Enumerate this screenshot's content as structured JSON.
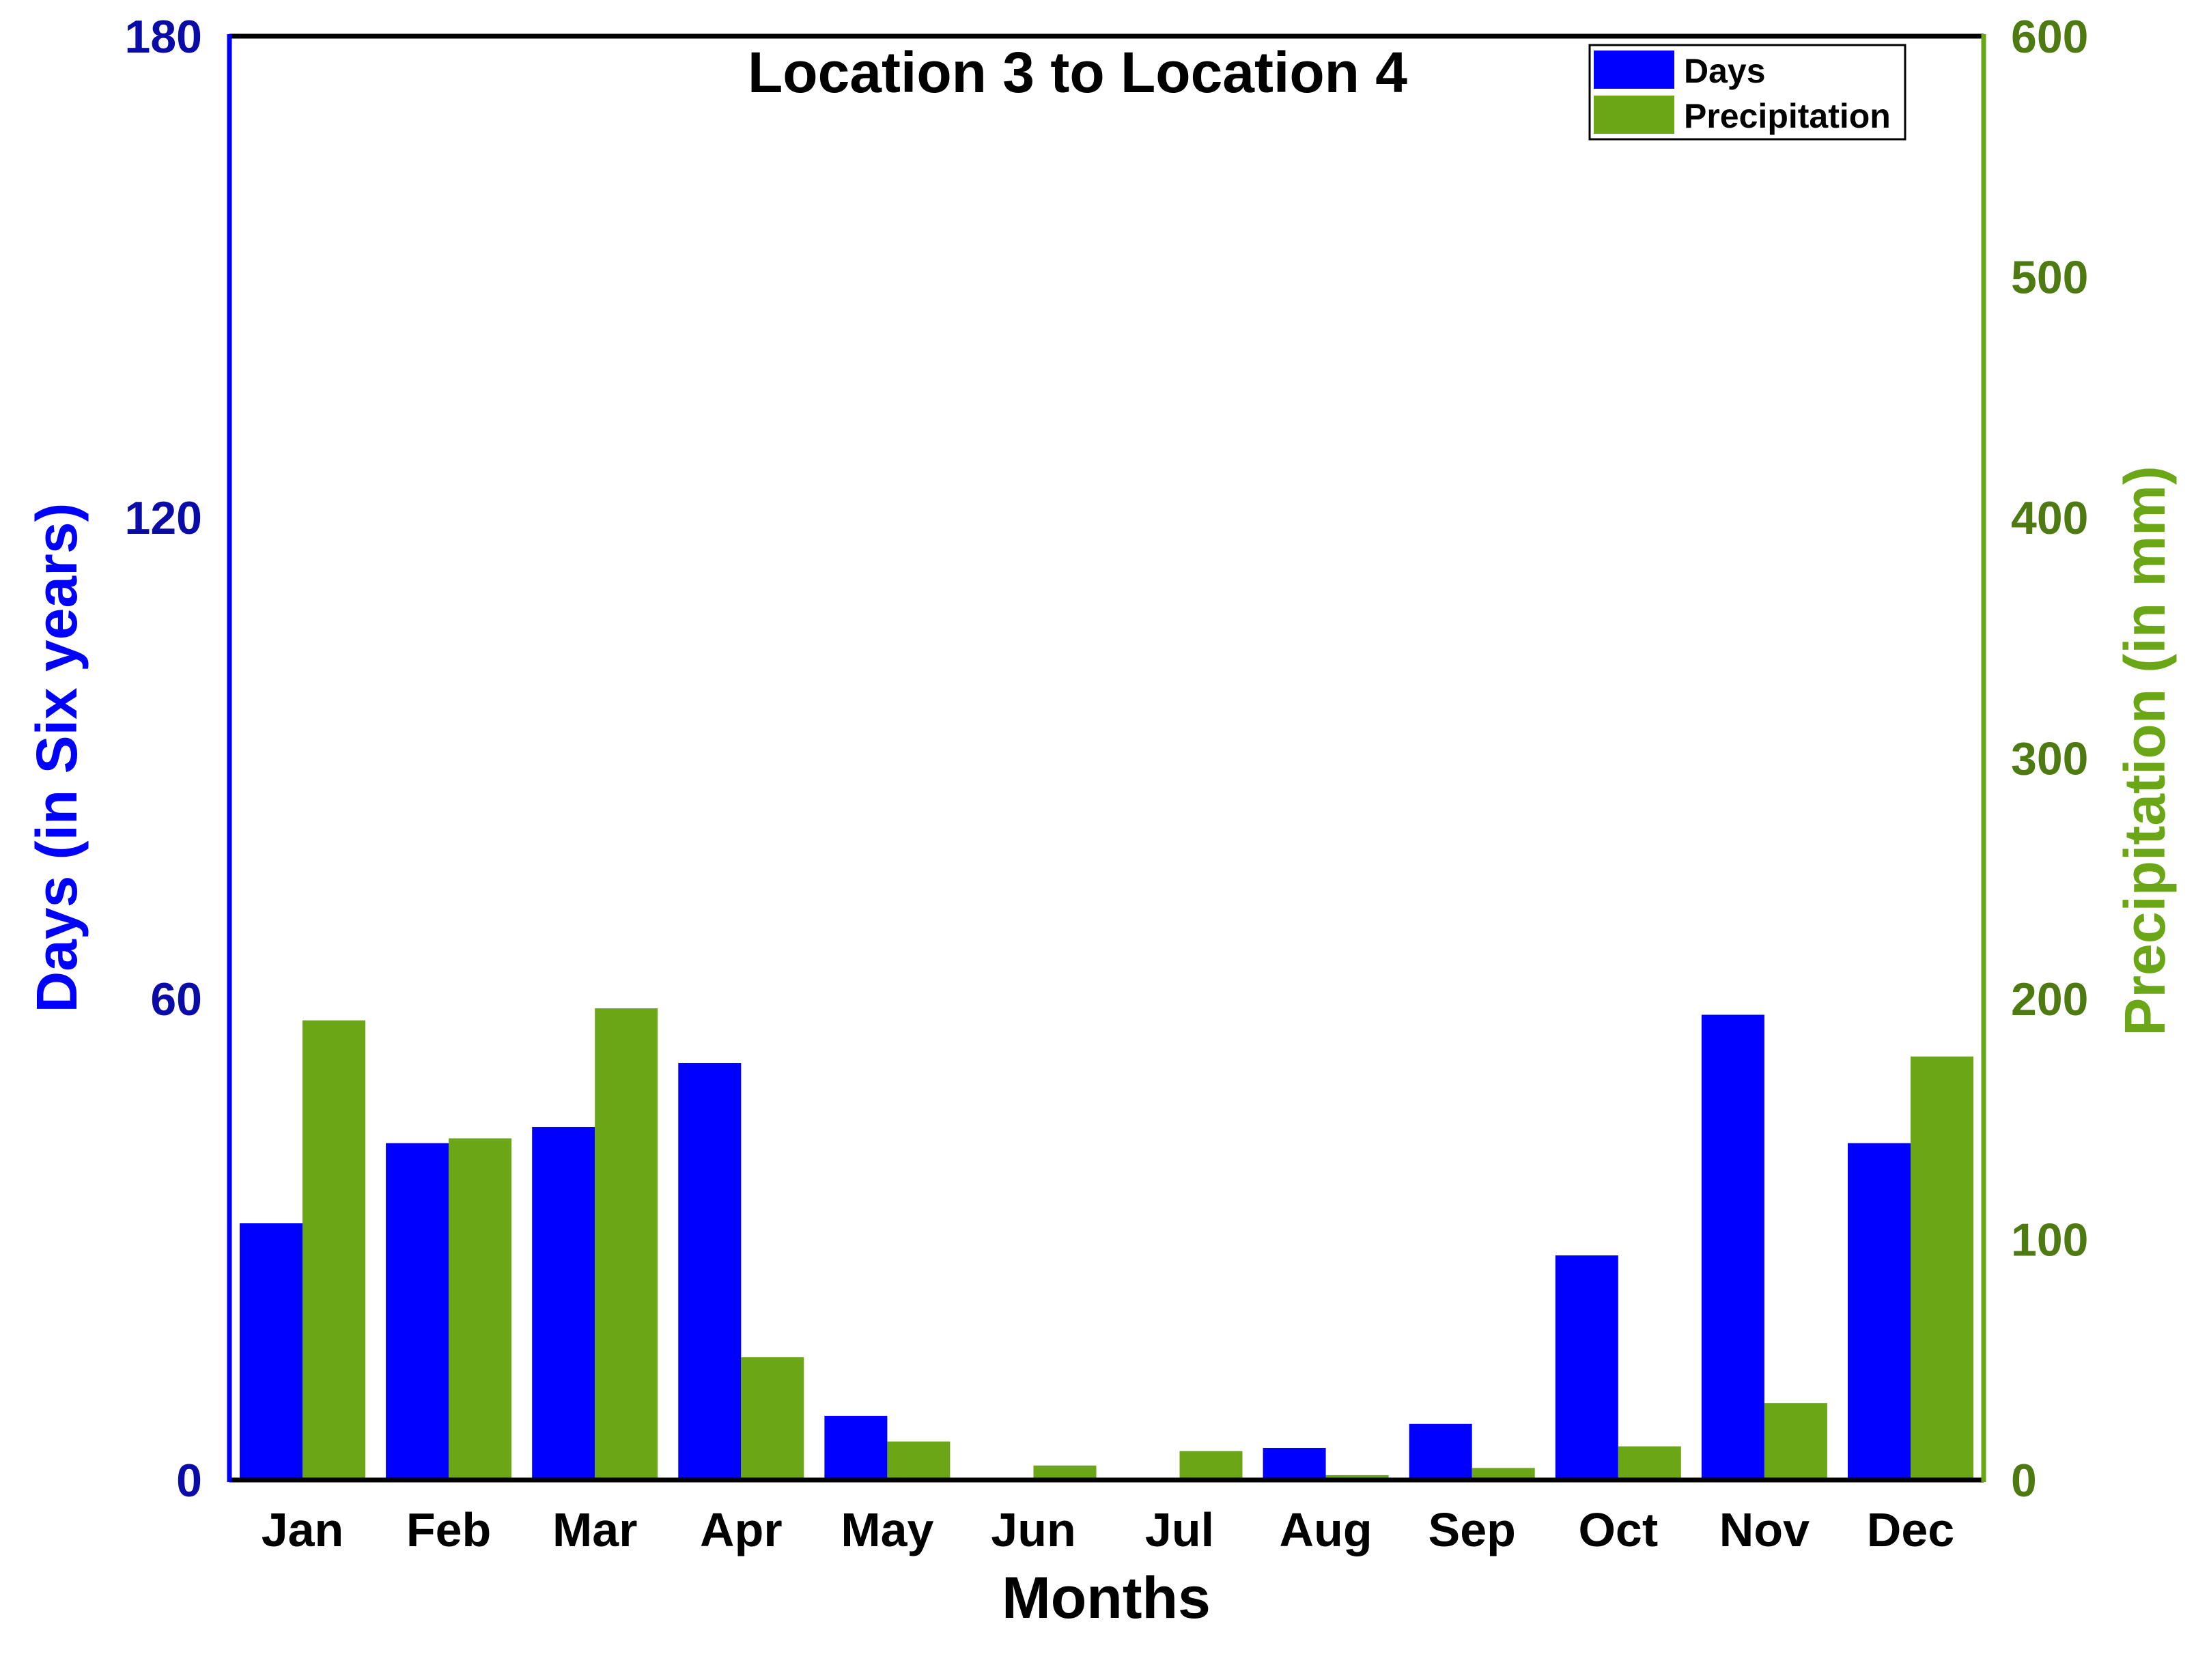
{
  "chart_data": {
    "type": "bar",
    "title": "Location 3 to Location 4",
    "xlabel": "Months",
    "ylabel_left": "Days (in Six years)",
    "ylabel_right": "Precipitation (in mm)",
    "categories": [
      "Jan",
      "Feb",
      "Mar",
      "Apr",
      "May",
      "Jun",
      "Jul",
      "Aug",
      "Sep",
      "Oct",
      "Nov",
      "Dec"
    ],
    "series": [
      {
        "name": "Days",
        "axis": "left",
        "color": "#0000ff",
        "values": [
          32,
          42,
          44,
          52,
          8,
          0,
          0,
          4,
          7,
          28,
          58,
          42
        ]
      },
      {
        "name": "Precipitation",
        "axis": "right",
        "color": "#6aa616",
        "values": [
          191,
          142,
          196,
          51,
          16,
          6,
          12,
          2,
          5,
          14,
          32,
          176
        ]
      }
    ],
    "ylim_left": [
      0,
      180
    ],
    "yticks_left": [
      0,
      60,
      120,
      180
    ],
    "ylim_right": [
      0,
      600
    ],
    "yticks_right": [
      0,
      100,
      200,
      300,
      400,
      500,
      600
    ],
    "legend_position": "top-right",
    "grid": false,
    "colors": {
      "left_axis": "#0000ff",
      "left_ticks": "#0b0ba8",
      "right_axis": "#6aa616",
      "right_ticks": "#4e7a12"
    }
  }
}
